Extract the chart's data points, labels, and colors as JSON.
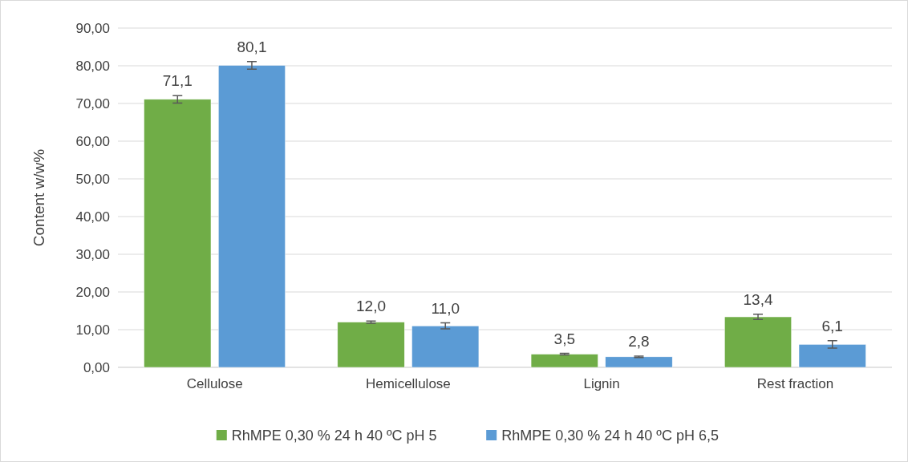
{
  "chart_data": {
    "type": "bar",
    "ylabel": "Content w/w%",
    "categories": [
      "Cellulose",
      "Hemicellulose",
      "Lignin",
      "Rest fraction"
    ],
    "series": [
      {
        "name": "RhMPE  0,30 % 24 h 40 ºC pH 5",
        "color": "#70ad47",
        "values": [
          71.1,
          12.0,
          3.5,
          13.4
        ],
        "errors": [
          1.0,
          0.3,
          0.2,
          0.7
        ],
        "value_labels": [
          "71,1",
          "12,0",
          "3,5",
          "13,4"
        ]
      },
      {
        "name": "RhMPE 0,30 % 24 h 40 ºC pH 6,5",
        "color": "#5b9bd5",
        "values": [
          80.1,
          11.0,
          2.8,
          6.1
        ],
        "errors": [
          1.0,
          0.8,
          0.2,
          1.0
        ],
        "value_labels": [
          "80,1",
          "11,0",
          "2,8",
          "6,1"
        ]
      }
    ],
    "ylim": [
      0,
      90
    ],
    "yticks": [
      {
        "value": 0,
        "label": "0,00"
      },
      {
        "value": 10,
        "label": "10,00"
      },
      {
        "value": 20,
        "label": "20,00"
      },
      {
        "value": 30,
        "label": "30,00"
      },
      {
        "value": 40,
        "label": "40,00"
      },
      {
        "value": 50,
        "label": "50,00"
      },
      {
        "value": 60,
        "label": "60,00"
      },
      {
        "value": 70,
        "label": "70,00"
      },
      {
        "value": 80,
        "label": "80,00"
      },
      {
        "value": 90,
        "label": "90,00"
      }
    ],
    "grid": "y",
    "legend": "bottom"
  }
}
